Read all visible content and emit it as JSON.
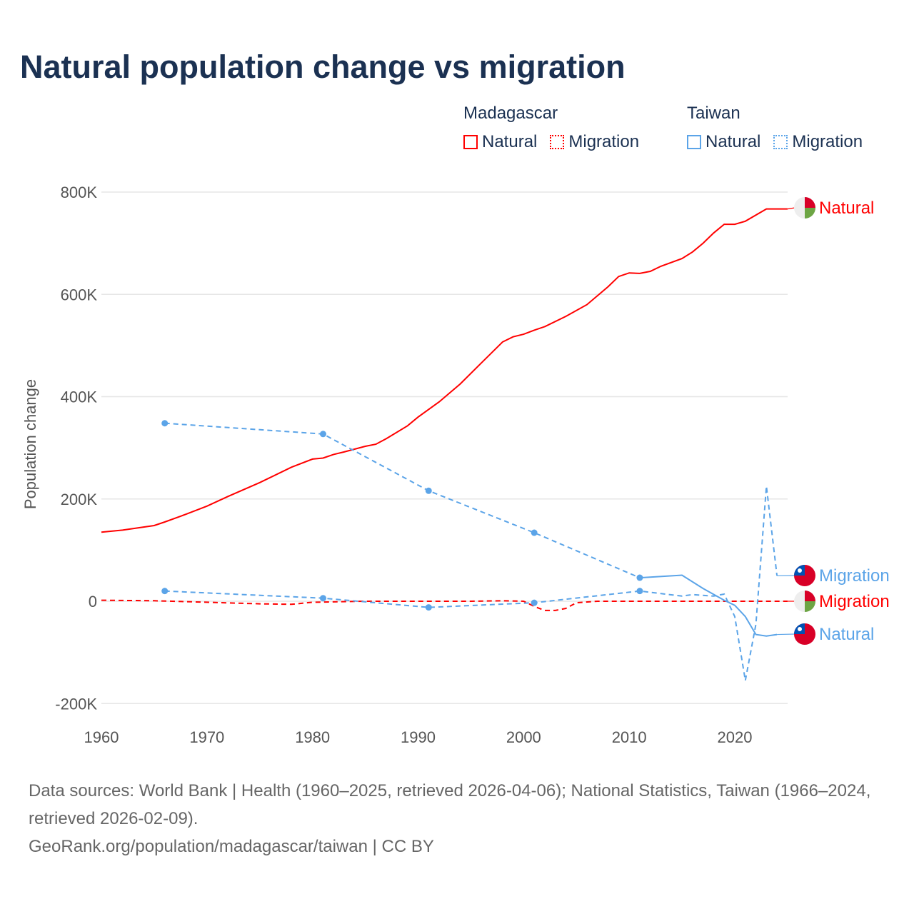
{
  "title": "Natural population change vs migration",
  "legend": {
    "groups": [
      {
        "name": "Madagascar",
        "items": [
          {
            "label": "Natural",
            "style": "solid",
            "color": "#ff0000"
          },
          {
            "label": "Migration",
            "style": "dotted",
            "color": "#ff0000"
          }
        ]
      },
      {
        "name": "Taiwan",
        "items": [
          {
            "label": "Natural",
            "style": "solid",
            "color": "#5ba4e8"
          },
          {
            "label": "Migration",
            "style": "dotted",
            "color": "#5ba4e8"
          }
        ]
      }
    ]
  },
  "chart_data": {
    "type": "line",
    "ylabel": "Population change",
    "xlabel": "",
    "xlim": [
      1960,
      2025
    ],
    "ylim": [
      -200000,
      800000
    ],
    "xticks": [
      "1960",
      "1970",
      "1980",
      "1990",
      "2000",
      "2010",
      "2020"
    ],
    "yticks": [
      {
        "v": 800000,
        "label": "800K"
      },
      {
        "v": 600000,
        "label": "600K"
      },
      {
        "v": 400000,
        "label": "400K"
      },
      {
        "v": 200000,
        "label": "200K"
      },
      {
        "v": 0,
        "label": "0"
      },
      {
        "v": -200000,
        "label": "-200K"
      }
    ],
    "grid": true,
    "series": [
      {
        "name": "Madagascar Natural",
        "label": "Natural",
        "country": "Madagascar",
        "color": "#ff0000",
        "dash": false,
        "flag": "madagascar",
        "points": [
          [
            1960,
            135000
          ],
          [
            1962,
            139000
          ],
          [
            1964,
            145000
          ],
          [
            1965,
            148000
          ],
          [
            1966,
            155000
          ],
          [
            1968,
            170000
          ],
          [
            1970,
            186000
          ],
          [
            1972,
            205000
          ],
          [
            1975,
            232000
          ],
          [
            1978,
            262000
          ],
          [
            1980,
            278000
          ],
          [
            1981,
            280000
          ],
          [
            1982,
            287000
          ],
          [
            1983,
            292000
          ],
          [
            1985,
            303000
          ],
          [
            1986,
            307000
          ],
          [
            1987,
            318000
          ],
          [
            1989,
            343000
          ],
          [
            1990,
            360000
          ],
          [
            1992,
            390000
          ],
          [
            1994,
            425000
          ],
          [
            1996,
            466000
          ],
          [
            1998,
            507000
          ],
          [
            1999,
            517000
          ],
          [
            2000,
            522000
          ],
          [
            2001,
            530000
          ],
          [
            2002,
            537000
          ],
          [
            2004,
            557000
          ],
          [
            2006,
            580000
          ],
          [
            2008,
            615000
          ],
          [
            2009,
            635000
          ],
          [
            2010,
            642000
          ],
          [
            2011,
            641000
          ],
          [
            2012,
            645000
          ],
          [
            2013,
            655000
          ],
          [
            2015,
            670000
          ],
          [
            2016,
            683000
          ],
          [
            2017,
            700000
          ],
          [
            2018,
            720000
          ],
          [
            2019,
            737000
          ],
          [
            2020,
            737000
          ],
          [
            2021,
            743000
          ],
          [
            2023,
            767000
          ],
          [
            2025,
            767000
          ]
        ]
      },
      {
        "name": "Madagascar Migration",
        "label": "Migration",
        "country": "Madagascar",
        "color": "#ff0000",
        "dash": true,
        "flag": "madagascar",
        "points": [
          [
            1960,
            2000
          ],
          [
            1965,
            1000
          ],
          [
            1970,
            -2000
          ],
          [
            1975,
            -5000
          ],
          [
            1978,
            -6000
          ],
          [
            1980,
            -2000
          ],
          [
            1985,
            0
          ],
          [
            1990,
            0
          ],
          [
            1995,
            0
          ],
          [
            1998,
            1000
          ],
          [
            2000,
            0
          ],
          [
            2001,
            -10000
          ],
          [
            2002,
            -18000
          ],
          [
            2003,
            -18000
          ],
          [
            2004,
            -14000
          ],
          [
            2005,
            -3000
          ],
          [
            2007,
            0
          ],
          [
            2010,
            0
          ],
          [
            2015,
            0
          ],
          [
            2020,
            0
          ],
          [
            2025,
            0
          ]
        ]
      },
      {
        "name": "Taiwan Natural",
        "label": "Natural",
        "country": "Taiwan",
        "color": "#5ba4e8",
        "dash": false,
        "flag": "taiwan",
        "sparse_until": 2011,
        "points": [
          [
            1966,
            348000
          ],
          [
            1981,
            327000
          ],
          [
            1991,
            216000
          ],
          [
            2001,
            134000
          ],
          [
            2011,
            46000
          ],
          [
            2015,
            51000
          ],
          [
            2017,
            25000
          ],
          [
            2019,
            2000
          ],
          [
            2020,
            -8000
          ],
          [
            2021,
            -30000
          ],
          [
            2022,
            -65000
          ],
          [
            2023,
            -68000
          ],
          [
            2024,
            -65000
          ]
        ]
      },
      {
        "name": "Taiwan Migration",
        "label": "Migration",
        "country": "Taiwan",
        "color": "#5ba4e8",
        "dash": true,
        "flag": "taiwan",
        "points": [
          [
            1966,
            20000
          ],
          [
            1981,
            6000
          ],
          [
            1991,
            -12000
          ],
          [
            2001,
            -3000
          ],
          [
            2011,
            20000
          ],
          [
            2015,
            10000
          ],
          [
            2016,
            13000
          ],
          [
            2018,
            10000
          ],
          [
            2019,
            14000
          ],
          [
            2020,
            -30000
          ],
          [
            2021,
            -155000
          ],
          [
            2022,
            -45000
          ],
          [
            2023,
            225000
          ],
          [
            2024,
            50000
          ]
        ]
      }
    ],
    "markers_years": [
      1966,
      1981,
      1991,
      2001,
      2011
    ]
  },
  "end_labels": [
    {
      "label": "Natural",
      "value": 767000,
      "color": "#ff0000",
      "flag": "madagascar"
    },
    {
      "label": "Migration",
      "value": 50000,
      "color": "#5ba4e8",
      "flag": "taiwan"
    },
    {
      "label": "Migration",
      "value": 0,
      "color": "#ff0000",
      "flag": "madagascar"
    },
    {
      "label": "Natural",
      "value": -65000,
      "color": "#5ba4e8",
      "flag": "taiwan"
    }
  ],
  "footer": {
    "line1": "Data sources: World Bank | Health (1960–2025, retrieved 2026-04-06); National Statistics, Taiwan (1966–2024, retrieved 2026-02-09).",
    "line2": "GeoRank.org/population/madagascar/taiwan | CC BY"
  }
}
